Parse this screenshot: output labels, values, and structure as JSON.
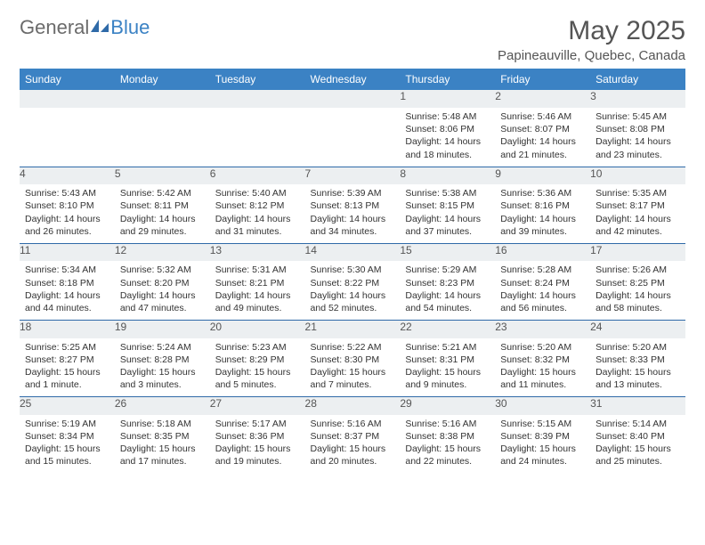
{
  "logo": {
    "text1": "General",
    "text2": "Blue"
  },
  "title": "May 2025",
  "location": "Papineauville, Quebec, Canada",
  "colors": {
    "header_bg": "#3b82c4",
    "header_text": "#ffffff",
    "daynum_bg": "#eceff1",
    "body_text": "#333333",
    "rule": "#2f6aa8"
  },
  "days_of_week": [
    "Sunday",
    "Monday",
    "Tuesday",
    "Wednesday",
    "Thursday",
    "Friday",
    "Saturday"
  ],
  "weeks": [
    [
      {
        "n": "",
        "sr": "",
        "ss": "",
        "dl": ""
      },
      {
        "n": "",
        "sr": "",
        "ss": "",
        "dl": ""
      },
      {
        "n": "",
        "sr": "",
        "ss": "",
        "dl": ""
      },
      {
        "n": "",
        "sr": "",
        "ss": "",
        "dl": ""
      },
      {
        "n": "1",
        "sr": "Sunrise: 5:48 AM",
        "ss": "Sunset: 8:06 PM",
        "dl": "Daylight: 14 hours and 18 minutes."
      },
      {
        "n": "2",
        "sr": "Sunrise: 5:46 AM",
        "ss": "Sunset: 8:07 PM",
        "dl": "Daylight: 14 hours and 21 minutes."
      },
      {
        "n": "3",
        "sr": "Sunrise: 5:45 AM",
        "ss": "Sunset: 8:08 PM",
        "dl": "Daylight: 14 hours and 23 minutes."
      }
    ],
    [
      {
        "n": "4",
        "sr": "Sunrise: 5:43 AM",
        "ss": "Sunset: 8:10 PM",
        "dl": "Daylight: 14 hours and 26 minutes."
      },
      {
        "n": "5",
        "sr": "Sunrise: 5:42 AM",
        "ss": "Sunset: 8:11 PM",
        "dl": "Daylight: 14 hours and 29 minutes."
      },
      {
        "n": "6",
        "sr": "Sunrise: 5:40 AM",
        "ss": "Sunset: 8:12 PM",
        "dl": "Daylight: 14 hours and 31 minutes."
      },
      {
        "n": "7",
        "sr": "Sunrise: 5:39 AM",
        "ss": "Sunset: 8:13 PM",
        "dl": "Daylight: 14 hours and 34 minutes."
      },
      {
        "n": "8",
        "sr": "Sunrise: 5:38 AM",
        "ss": "Sunset: 8:15 PM",
        "dl": "Daylight: 14 hours and 37 minutes."
      },
      {
        "n": "9",
        "sr": "Sunrise: 5:36 AM",
        "ss": "Sunset: 8:16 PM",
        "dl": "Daylight: 14 hours and 39 minutes."
      },
      {
        "n": "10",
        "sr": "Sunrise: 5:35 AM",
        "ss": "Sunset: 8:17 PM",
        "dl": "Daylight: 14 hours and 42 minutes."
      }
    ],
    [
      {
        "n": "11",
        "sr": "Sunrise: 5:34 AM",
        "ss": "Sunset: 8:18 PM",
        "dl": "Daylight: 14 hours and 44 minutes."
      },
      {
        "n": "12",
        "sr": "Sunrise: 5:32 AM",
        "ss": "Sunset: 8:20 PM",
        "dl": "Daylight: 14 hours and 47 minutes."
      },
      {
        "n": "13",
        "sr": "Sunrise: 5:31 AM",
        "ss": "Sunset: 8:21 PM",
        "dl": "Daylight: 14 hours and 49 minutes."
      },
      {
        "n": "14",
        "sr": "Sunrise: 5:30 AM",
        "ss": "Sunset: 8:22 PM",
        "dl": "Daylight: 14 hours and 52 minutes."
      },
      {
        "n": "15",
        "sr": "Sunrise: 5:29 AM",
        "ss": "Sunset: 8:23 PM",
        "dl": "Daylight: 14 hours and 54 minutes."
      },
      {
        "n": "16",
        "sr": "Sunrise: 5:28 AM",
        "ss": "Sunset: 8:24 PM",
        "dl": "Daylight: 14 hours and 56 minutes."
      },
      {
        "n": "17",
        "sr": "Sunrise: 5:26 AM",
        "ss": "Sunset: 8:25 PM",
        "dl": "Daylight: 14 hours and 58 minutes."
      }
    ],
    [
      {
        "n": "18",
        "sr": "Sunrise: 5:25 AM",
        "ss": "Sunset: 8:27 PM",
        "dl": "Daylight: 15 hours and 1 minute."
      },
      {
        "n": "19",
        "sr": "Sunrise: 5:24 AM",
        "ss": "Sunset: 8:28 PM",
        "dl": "Daylight: 15 hours and 3 minutes."
      },
      {
        "n": "20",
        "sr": "Sunrise: 5:23 AM",
        "ss": "Sunset: 8:29 PM",
        "dl": "Daylight: 15 hours and 5 minutes."
      },
      {
        "n": "21",
        "sr": "Sunrise: 5:22 AM",
        "ss": "Sunset: 8:30 PM",
        "dl": "Daylight: 15 hours and 7 minutes."
      },
      {
        "n": "22",
        "sr": "Sunrise: 5:21 AM",
        "ss": "Sunset: 8:31 PM",
        "dl": "Daylight: 15 hours and 9 minutes."
      },
      {
        "n": "23",
        "sr": "Sunrise: 5:20 AM",
        "ss": "Sunset: 8:32 PM",
        "dl": "Daylight: 15 hours and 11 minutes."
      },
      {
        "n": "24",
        "sr": "Sunrise: 5:20 AM",
        "ss": "Sunset: 8:33 PM",
        "dl": "Daylight: 15 hours and 13 minutes."
      }
    ],
    [
      {
        "n": "25",
        "sr": "Sunrise: 5:19 AM",
        "ss": "Sunset: 8:34 PM",
        "dl": "Daylight: 15 hours and 15 minutes."
      },
      {
        "n": "26",
        "sr": "Sunrise: 5:18 AM",
        "ss": "Sunset: 8:35 PM",
        "dl": "Daylight: 15 hours and 17 minutes."
      },
      {
        "n": "27",
        "sr": "Sunrise: 5:17 AM",
        "ss": "Sunset: 8:36 PM",
        "dl": "Daylight: 15 hours and 19 minutes."
      },
      {
        "n": "28",
        "sr": "Sunrise: 5:16 AM",
        "ss": "Sunset: 8:37 PM",
        "dl": "Daylight: 15 hours and 20 minutes."
      },
      {
        "n": "29",
        "sr": "Sunrise: 5:16 AM",
        "ss": "Sunset: 8:38 PM",
        "dl": "Daylight: 15 hours and 22 minutes."
      },
      {
        "n": "30",
        "sr": "Sunrise: 5:15 AM",
        "ss": "Sunset: 8:39 PM",
        "dl": "Daylight: 15 hours and 24 minutes."
      },
      {
        "n": "31",
        "sr": "Sunrise: 5:14 AM",
        "ss": "Sunset: 8:40 PM",
        "dl": "Daylight: 15 hours and 25 minutes."
      }
    ]
  ]
}
